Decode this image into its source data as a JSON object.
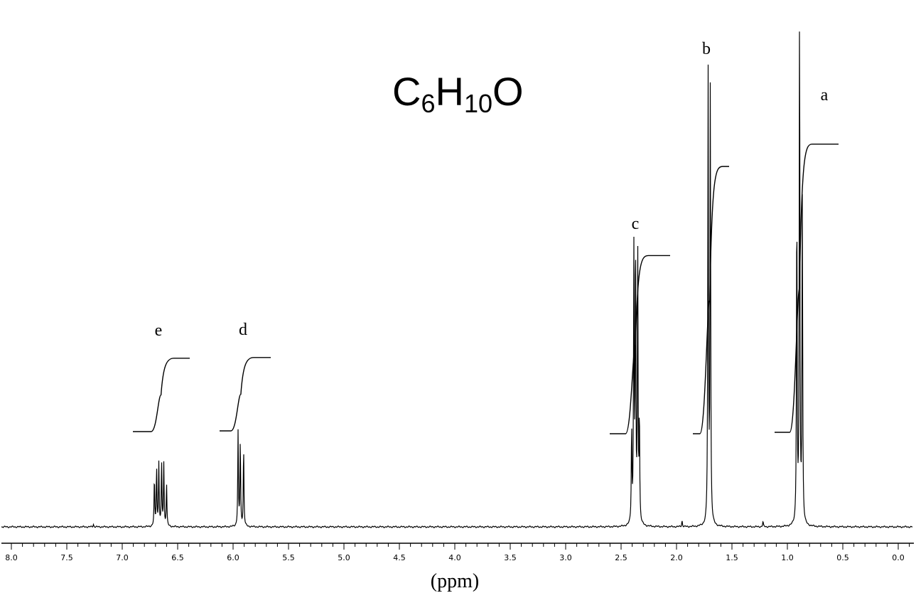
{
  "chart_data": {
    "type": "line",
    "formula": {
      "c": "C",
      "c_sub": "6",
      "h": "H",
      "h_sub": "10",
      "o": "O"
    },
    "xlabel": "(ppm)",
    "xlim": [
      8.0,
      0.0
    ],
    "x_reversed": true,
    "x_ticks": [
      "8.0",
      "7.5",
      "7.0",
      "6.5",
      "6.0",
      "5.5",
      "5.0",
      "4.5",
      "4.0",
      "3.5",
      "3.0",
      "2.5",
      "2.0",
      "1.5",
      "1.0",
      "0.5",
      "0.0"
    ],
    "x_tick_values": [
      8.0,
      7.5,
      7.0,
      6.5,
      6.0,
      5.5,
      5.0,
      4.5,
      4.0,
      3.5,
      3.0,
      2.5,
      2.0,
      1.5,
      1.0,
      0.5,
      0.0
    ],
    "signals": [
      {
        "label": "a",
        "ppm": 0.89,
        "lines": [
          {
            "ppm": 0.915,
            "h": 0.62
          },
          {
            "ppm": 0.89,
            "h": 1.0
          },
          {
            "ppm": 0.865,
            "h": 0.62
          }
        ],
        "integral_rise": 0.55
      },
      {
        "label": "b",
        "ppm": 1.7,
        "lines": [
          {
            "ppm": 1.715,
            "h": 0.86
          },
          {
            "ppm": 1.695,
            "h": 0.84
          }
        ],
        "integral_rise": 0.51
      },
      {
        "label": "c",
        "ppm": 2.37,
        "lines": [
          {
            "ppm": 2.405,
            "h": 0.18
          },
          {
            "ppm": 2.385,
            "h": 0.52
          },
          {
            "ppm": 2.37,
            "h": 0.54
          },
          {
            "ppm": 2.35,
            "h": 0.52
          },
          {
            "ppm": 2.335,
            "h": 0.2
          }
        ],
        "integral_rise": 0.34
      },
      {
        "label": "d",
        "ppm": 5.93,
        "lines": [
          {
            "ppm": 5.955,
            "h": 0.18
          },
          {
            "ppm": 5.935,
            "h": 0.16
          },
          {
            "ppm": 5.905,
            "h": 0.15
          }
        ],
        "integral_rise": 0.14
      },
      {
        "label": "e",
        "ppm": 6.65,
        "lines": [
          {
            "ppm": 6.71,
            "h": 0.09
          },
          {
            "ppm": 6.69,
            "h": 0.11
          },
          {
            "ppm": 6.67,
            "h": 0.12
          },
          {
            "ppm": 6.645,
            "h": 0.12
          },
          {
            "ppm": 6.625,
            "h": 0.12
          },
          {
            "ppm": 6.6,
            "h": 0.08
          }
        ],
        "integral_rise": 0.14
      }
    ],
    "minor_peaks": [
      {
        "ppm": 7.26,
        "h": 0.005
      },
      {
        "ppm": 1.95,
        "h": 0.012
      },
      {
        "ppm": 1.22,
        "h": 0.01
      }
    ],
    "grid": false,
    "legend": "none"
  }
}
